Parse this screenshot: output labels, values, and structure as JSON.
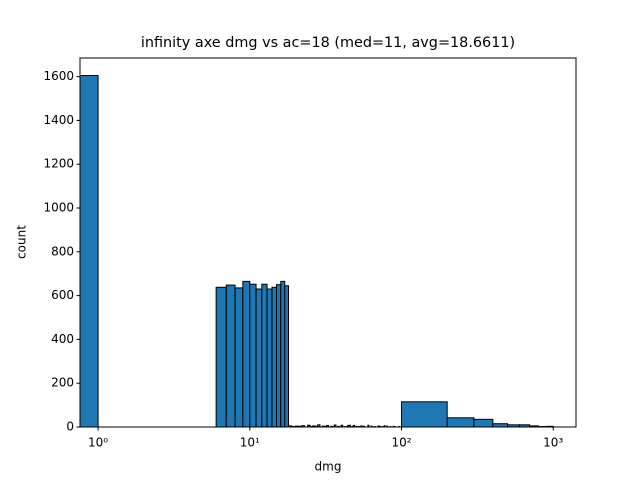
{
  "chart_data": {
    "type": "histogram",
    "title": "infinity axe dmg vs ac=18 (med=11, avg=18.6611)",
    "x_label": "dmg",
    "y_label": "count",
    "color": "#1f77b4",
    "x_scale": "log",
    "bins": [
      0,
      1,
      2,
      3,
      4,
      5,
      6,
      7,
      8,
      9,
      10,
      11,
      12,
      13,
      14,
      15,
      16,
      17,
      18,
      19,
      20,
      21,
      22,
      23,
      24,
      25,
      26,
      27,
      28,
      29,
      30,
      31,
      32,
      33,
      34,
      35,
      36,
      37,
      38,
      39,
      40,
      41,
      42,
      43,
      44,
      45,
      46,
      47,
      48,
      49,
      50,
      51,
      52,
      53,
      54,
      55,
      56,
      57,
      58,
      59,
      60,
      61,
      62,
      63,
      64,
      65,
      66,
      67,
      68,
      69,
      70,
      71,
      72,
      73,
      74,
      75,
      76,
      77,
      78,
      79,
      80,
      81,
      82,
      83,
      84,
      85,
      86,
      87,
      88,
      89,
      90,
      91,
      92,
      93,
      94,
      95,
      96,
      97,
      98,
      99,
      100,
      200,
      300,
      400,
      500,
      600,
      700,
      800,
      900,
      1000
    ],
    "values": [
      1605,
      0,
      0,
      0,
      0,
      0,
      638,
      648,
      635,
      665,
      652,
      630,
      652,
      630,
      638,
      650,
      665,
      645,
      5,
      2,
      4,
      3,
      6,
      0,
      8,
      2,
      5,
      3,
      10,
      0,
      4,
      2,
      7,
      0,
      3,
      2,
      9,
      0,
      3,
      0,
      8,
      0,
      2,
      0,
      6,
      8,
      0,
      2,
      7,
      0,
      3,
      0,
      2,
      0,
      5,
      0,
      3,
      0,
      0,
      0,
      8,
      0,
      0,
      4,
      0,
      0,
      2,
      0,
      0,
      0,
      5,
      0,
      3,
      0,
      0,
      2,
      0,
      6,
      0,
      0,
      4,
      0,
      0,
      0,
      2,
      0,
      0,
      0,
      3,
      0,
      2,
      0,
      0,
      0,
      0,
      0,
      2,
      0,
      0,
      0,
      115,
      42,
      35,
      15,
      10,
      10,
      5,
      2,
      3
    ],
    "xlim": [
      0.76,
      1413
    ],
    "ylim": [
      0,
      1685
    ],
    "xticks": [
      {
        "value": 1,
        "label": "10⁰"
      },
      {
        "value": 10,
        "label": "10¹"
      },
      {
        "value": 100,
        "label": "10²"
      },
      {
        "value": 1000,
        "label": "10³"
      }
    ],
    "yticks": [
      0,
      200,
      400,
      600,
      800,
      1000,
      1200,
      1400,
      1600
    ]
  }
}
